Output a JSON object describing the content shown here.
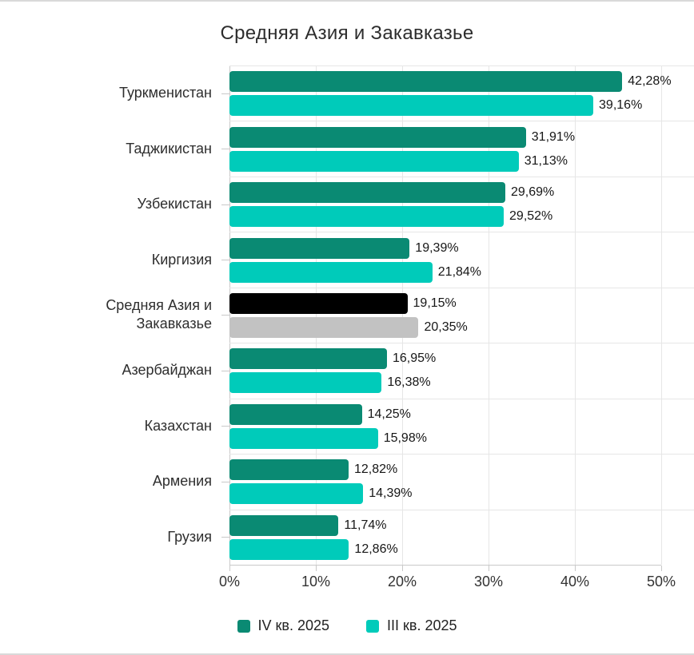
{
  "chart_data": {
    "type": "bar",
    "orientation": "horizontal",
    "title": "Средняя Азия и Закавказье",
    "categories": [
      "Туркменистан",
      "Таджикистан",
      "Узбекистан",
      "Киргизия",
      "Средняя Азия и Закавказье",
      "Азербайджан",
      "Казахстан",
      "Армения",
      "Грузия"
    ],
    "series": [
      {
        "name": "IV кв. 2025",
        "color": "#0a8a73",
        "values": [
          42.28,
          31.91,
          29.69,
          19.39,
          19.15,
          16.95,
          14.25,
          12.82,
          11.74
        ],
        "labels": [
          "42,28%",
          "31,91%",
          "29,69%",
          "19,39%",
          "19,15%",
          "16,95%",
          "14,25%",
          "12,82%",
          "11,74%"
        ]
      },
      {
        "name": "III кв. 2025",
        "color": "#00cbba",
        "values": [
          39.16,
          31.13,
          29.52,
          21.84,
          20.35,
          16.38,
          15.98,
          14.39,
          12.86
        ],
        "labels": [
          "39,16%",
          "31,13%",
          "29,52%",
          "21,84%",
          "20,35%",
          "16,38%",
          "15,98%",
          "14,39%",
          "12,86%"
        ]
      }
    ],
    "bar_color_overrides": {
      "4": [
        "#000000",
        "#c2c2c2"
      ]
    },
    "xlim": [
      0,
      50
    ],
    "x_ticks": [
      "0%",
      "10%",
      "20%",
      "30%",
      "40%",
      "50%"
    ],
    "grid": true,
    "legend_position": "bottom"
  }
}
